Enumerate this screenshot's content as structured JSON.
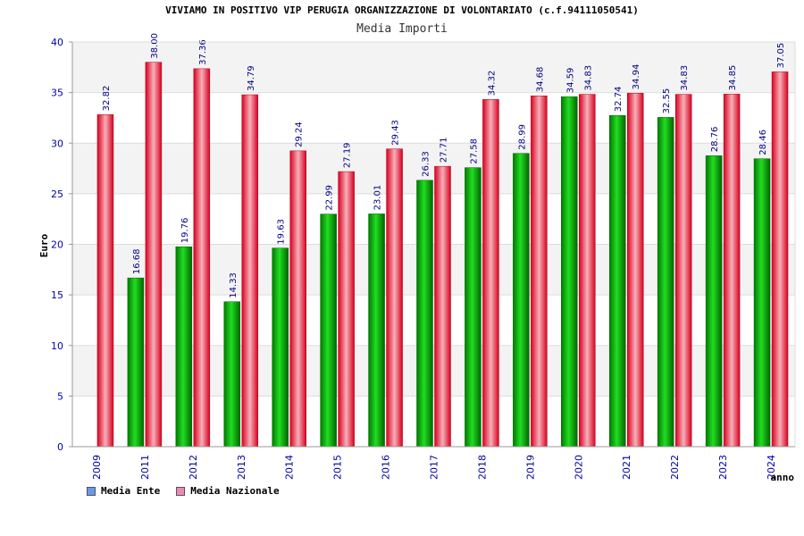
{
  "chart_data": {
    "type": "bar",
    "title": "VIVIAMO IN POSITIVO VIP PERUGIA ORGANIZZAZIONE DI VOLONTARIATO (c.f.94111050541)",
    "subtitle": "Media Importi",
    "xlabel": "anno",
    "ylabel": "Euro",
    "ylim": [
      0,
      40
    ],
    "yticks": [
      0,
      5,
      10,
      15,
      20,
      25,
      30,
      35,
      40
    ],
    "categories": [
      "2009",
      "2011",
      "2012",
      "2013",
      "2014",
      "2015",
      "2016",
      "2017",
      "2018",
      "2019",
      "2020",
      "2021",
      "2022",
      "2023",
      "2024"
    ],
    "series": [
      {
        "name": "Media Ente",
        "color": "#00a000",
        "legend_color": "#6699ee",
        "values": [
          null,
          16.68,
          19.76,
          14.33,
          19.63,
          22.99,
          23.01,
          26.33,
          27.58,
          28.99,
          34.59,
          32.74,
          32.55,
          28.76,
          28.46
        ]
      },
      {
        "name": "Media Nazionale",
        "color": "#e0102a",
        "legend_color": "#ee88bb",
        "values": [
          32.82,
          38.0,
          37.36,
          34.79,
          29.24,
          27.19,
          29.43,
          27.71,
          34.32,
          34.68,
          34.83,
          34.94,
          34.83,
          34.85,
          37.05
        ]
      }
    ],
    "value_labels": [
      [
        "",
        "16.68",
        "19.76",
        "14.33",
        "19.63",
        "22.99",
        "23.01",
        "26.33",
        "27.58",
        "28.99",
        "34.59",
        "32.74",
        "32.55",
        "28.76",
        "28.46"
      ],
      [
        "32.82",
        "38.00",
        "37.36",
        "34.79",
        "29.24",
        "27.19",
        "29.43",
        "27.71",
        "34.32",
        "34.68",
        "34.83",
        "34.94",
        "34.83",
        "34.85",
        "37.05"
      ]
    ],
    "grid": true,
    "legend": "bottom-left"
  }
}
